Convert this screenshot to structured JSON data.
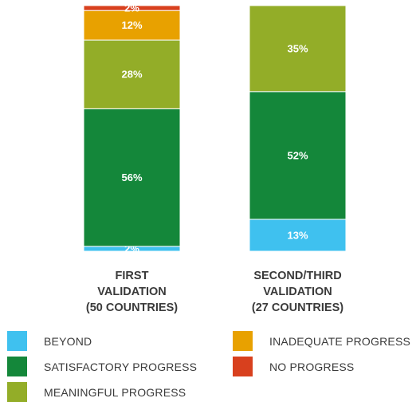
{
  "chart_data": {
    "type": "bar",
    "stacked": true,
    "percent": true,
    "categories": [
      [
        "FIRST",
        "VALIDATION",
        "(50 COUNTRIES)"
      ],
      [
        "SECOND/THIRD",
        "VALIDATION",
        "(27 COUNTRIES)"
      ]
    ],
    "series": [
      {
        "name": "BEYOND",
        "color": "#3fc1ef",
        "values": [
          2,
          13
        ]
      },
      {
        "name": "SATISFACTORY PROGRESS",
        "color": "#14873a",
        "values": [
          56,
          52
        ]
      },
      {
        "name": "MEANINGFUL PROGRESS",
        "color": "#93ad28",
        "values": [
          28,
          35
        ]
      },
      {
        "name": "INADEQUATE PROGRESS",
        "color": "#e8a100",
        "values": [
          12,
          0
        ]
      },
      {
        "name": "NO PROGRESS",
        "color": "#d8401e",
        "values": [
          2,
          0
        ]
      }
    ],
    "value_suffix": "%",
    "ylim": [
      0,
      100
    ],
    "legend_position": "bottom"
  },
  "legend": {
    "items": [
      {
        "label": "BEYOND",
        "color": "#3fc1ef"
      },
      {
        "label": "SATISFACTORY PROGRESS",
        "color": "#14873a"
      },
      {
        "label": "MEANINGFUL PROGRESS",
        "color": "#93ad28"
      },
      {
        "label": "INADEQUATE PROGRESS",
        "color": "#e8a100"
      },
      {
        "label": "NO PROGRESS",
        "color": "#d8401e"
      }
    ]
  }
}
